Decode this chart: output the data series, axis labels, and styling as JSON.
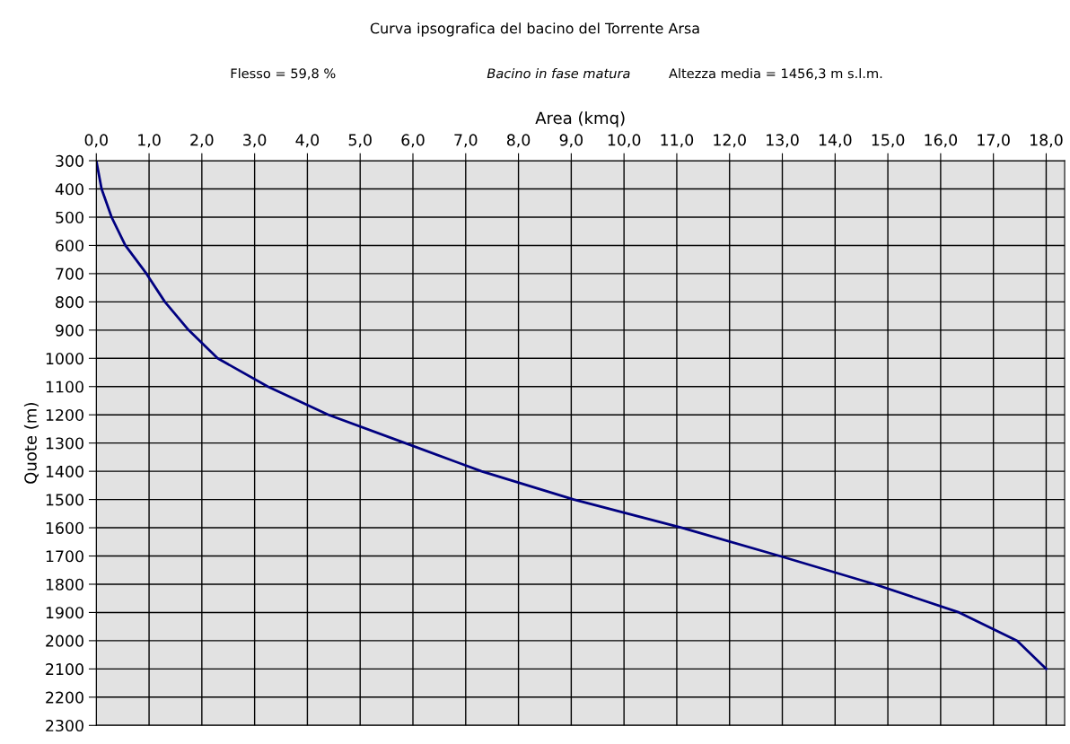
{
  "chart_data": {
    "type": "line",
    "title": "Curva ipsografica del bacino del Torrente Arsa",
    "annotations": [
      "Flesso = 59,8 %",
      "Bacino in fase matura",
      "Altezza media = 1456,3 m s.l.m."
    ],
    "xlabel": "Area (kmq)",
    "ylabel": "Quote (m)",
    "x": [
      0.0,
      0.1,
      0.29,
      0.55,
      0.95,
      1.3,
      1.75,
      2.3,
      3.25,
      4.4,
      5.85,
      7.3,
      9.05,
      11.1,
      12.95,
      14.75,
      16.35,
      17.45,
      18.0
    ],
    "series": [
      {
        "color": "#000080",
        "values": [
          300,
          400,
          500,
          600,
          700,
          800,
          900,
          1000,
          1100,
          1200,
          1300,
          1400,
          1500,
          1600,
          1700,
          1800,
          1900,
          2000,
          2100
        ]
      }
    ],
    "xlim": [
      0,
      18.35
    ],
    "ylim": [
      2300,
      300
    ],
    "xticks": [
      {
        "value": 0,
        "label": "0,0"
      },
      {
        "value": 1,
        "label": "1,0"
      },
      {
        "value": 2,
        "label": "2,0"
      },
      {
        "value": 3,
        "label": "3,0"
      },
      {
        "value": 4,
        "label": "4,0"
      },
      {
        "value": 5,
        "label": "5,0"
      },
      {
        "value": 6,
        "label": "6,0"
      },
      {
        "value": 7,
        "label": "7,0"
      },
      {
        "value": 8,
        "label": "8,0"
      },
      {
        "value": 9,
        "label": "9,0"
      },
      {
        "value": 10,
        "label": "10,0"
      },
      {
        "value": 11,
        "label": "11,0"
      },
      {
        "value": 12,
        "label": "12,0"
      },
      {
        "value": 13,
        "label": "13,0"
      },
      {
        "value": 14,
        "label": "14,0"
      },
      {
        "value": 15,
        "label": "15,0"
      },
      {
        "value": 16,
        "label": "16,0"
      },
      {
        "value": 17,
        "label": "17,0"
      },
      {
        "value": 18,
        "label": "18,0"
      }
    ],
    "yticks": [
      300,
      400,
      500,
      600,
      700,
      800,
      900,
      1000,
      1100,
      1200,
      1300,
      1400,
      1500,
      1600,
      1700,
      1800,
      1900,
      2000,
      2100,
      2200,
      2300
    ],
    "grid": true,
    "marker": "none",
    "line_style": "solid",
    "legend": false
  }
}
